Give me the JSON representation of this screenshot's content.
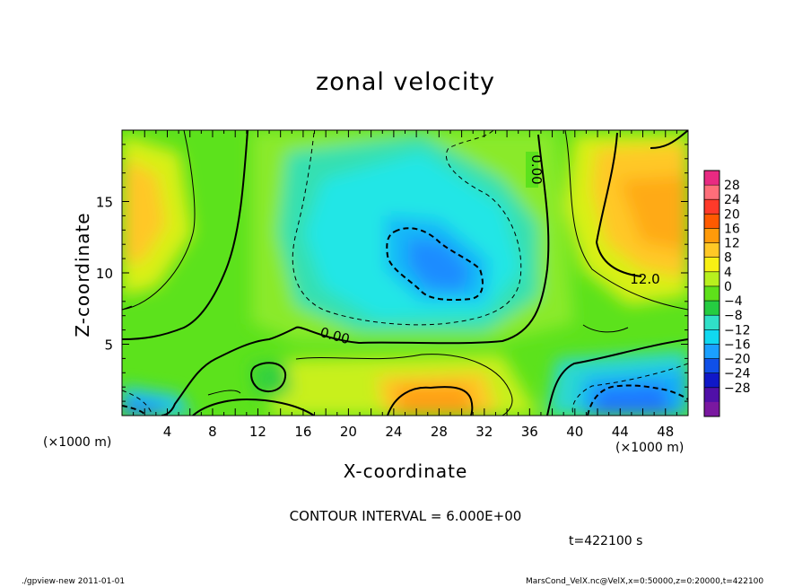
{
  "chart_data": {
    "type": "heatmap",
    "title": "zonal velocity",
    "xlabel": "X-coordinate",
    "ylabel": "Z-coordinate",
    "x_unit_label": "(×1000 m)",
    "y_unit_label": "(×1000 m)",
    "xlim": [
      0,
      50
    ],
    "ylim": [
      0,
      20
    ],
    "x_ticks": [
      "4",
      "8",
      "12",
      "16",
      "20",
      "24",
      "28",
      "32",
      "36",
      "40",
      "44",
      "48"
    ],
    "y_ticks": [
      "5",
      "10",
      "15"
    ],
    "colorbar_levels": [
      "28",
      "24",
      "20",
      "16",
      "12",
      "8",
      "4",
      "0",
      "−4",
      "−8",
      "−12",
      "−16",
      "−20",
      "−24",
      "−28"
    ],
    "colorbar_colors": [
      "#e82a82",
      "#ff6e7a",
      "#ff3a2a",
      "#ff5a00",
      "#ff9a0a",
      "#ffc826",
      "#f8f014",
      "#b8f01e",
      "#5ee01a",
      "#25cc41",
      "#30e0c8",
      "#10d8f0",
      "#1aa0ff",
      "#1050e8",
      "#1018c8",
      "#5010a8",
      "#7a18a0"
    ],
    "contour_labels": [
      "0.00",
      "0.00",
      "12.0"
    ],
    "contour_interval": "CONTOUR INTERVAL = 6.000E+00",
    "time": "t=422100 s",
    "features": [
      {
        "x": 28,
        "z": 11,
        "value": -14
      },
      {
        "x": 1,
        "z": 14,
        "value": 12
      },
      {
        "x": 45,
        "z": 14,
        "value": 12
      },
      {
        "x": 27,
        "z": 1.2,
        "value": 12
      },
      {
        "x": 44,
        "z": 1.0,
        "value": -14
      },
      {
        "x": 1,
        "z": 0.6,
        "value": -12
      }
    ]
  },
  "footer": {
    "left": "./gpview-new   2011-01-01",
    "right": "MarsCond_VelX.nc@VelX,x=0:50000,z=0:20000,t=422100"
  }
}
